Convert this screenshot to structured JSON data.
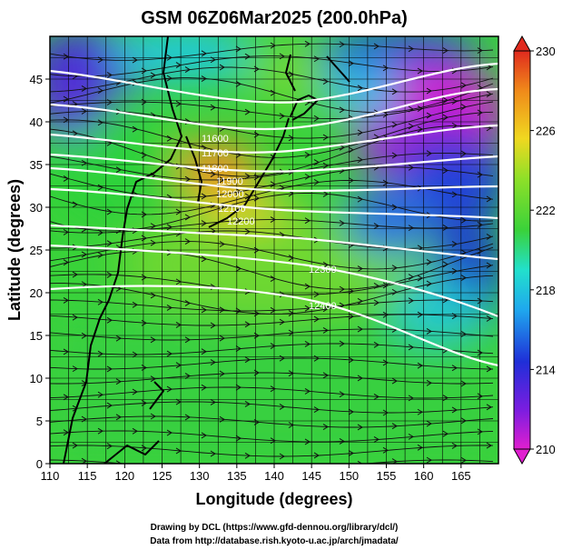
{
  "title": "GSM 06Z06Mar2025 (200.0hPa)",
  "x_axis": {
    "label": "Longitude (degrees)",
    "ticks": [
      "110",
      "115",
      "120",
      "125",
      "130",
      "135",
      "140",
      "145",
      "150",
      "155",
      "160",
      "165"
    ],
    "range": [
      110,
      170
    ]
  },
  "y_axis": {
    "label": "Latitude (degrees)",
    "ticks": [
      "0",
      "5",
      "10",
      "15",
      "20",
      "25",
      "30",
      "35",
      "40",
      "45"
    ],
    "range": [
      0,
      50
    ]
  },
  "colorbar": {
    "ticks": [
      "230",
      "226",
      "222",
      "218",
      "214",
      "210"
    ],
    "range": [
      210,
      230
    ],
    "colors": [
      "#e01fd0",
      "#7a1de0",
      "#1f2fd8",
      "#1fa8ee",
      "#22e0cc",
      "#3ad23a",
      "#8fe028",
      "#f0d820",
      "#f08a1a",
      "#e02a1e"
    ]
  },
  "contour_labels": [
    "11600",
    "11700",
    "11800",
    "11900",
    "12000",
    "12100",
    "12200",
    "12300",
    "12400"
  ],
  "credits": {
    "line1": "Drawing by DCL (https://www.gfd-dennou.org/library/dcl/)",
    "line2": "Data from http://database.rish.kyoto-u.ac.jp/arch/jmadata/"
  }
}
